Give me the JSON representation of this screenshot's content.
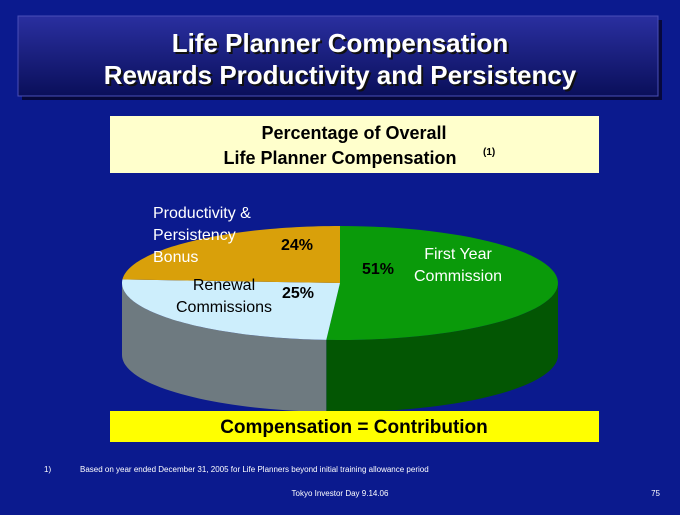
{
  "slide": {
    "heading": [
      "Life Planner Compensation",
      "Rewards Productivity and Persistency"
    ],
    "banner": "Compensation = Contribution",
    "footnote_marker": "1)",
    "footnote": "Based on year ended December 31, 2005 for Life Planners beyond initial training allowance period",
    "footer": "Tokyo Investor Day 9.14.06",
    "page_number": "75"
  },
  "chart_data": {
    "type": "pie",
    "title": "Percentage of Overall",
    "subtitle": "Life Planner Compensation",
    "title_note": "(1)",
    "categories": [
      "First Year Commission",
      "Renewal Commissions",
      "Productivity & Persistency Bonus"
    ],
    "values": [
      51,
      25,
      24
    ],
    "value_labels": [
      "51%",
      "25%",
      "24%"
    ],
    "colors": [
      "#0a9a0a",
      "#cdeefc",
      "#d9a00a"
    ]
  }
}
